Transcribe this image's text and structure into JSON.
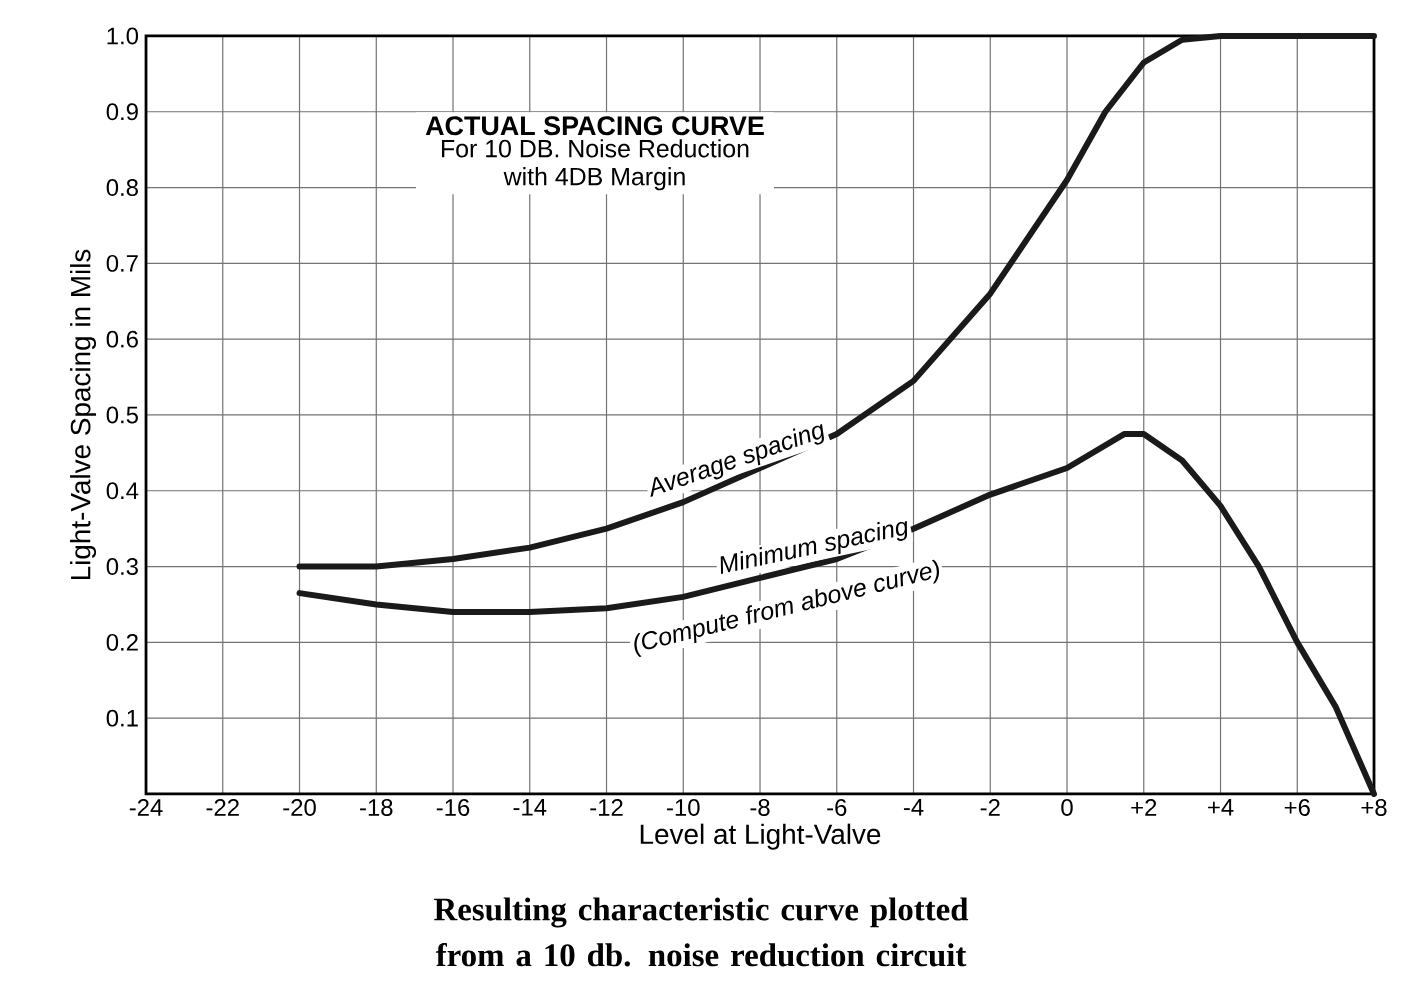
{
  "chart_data": {
    "type": "line",
    "title": "ACTUAL SPACING CURVE",
    "subtitle": "For 10 DB. Noise Reduction with 4DB Margin",
    "xlabel": "Level at Light-Valve",
    "ylabel": "Light-Valve Spacing in Mils",
    "xlim": [
      -24,
      8
    ],
    "ylim": [
      0,
      1.0
    ],
    "xticks": [
      -24,
      -22,
      -20,
      -18,
      -16,
      -14,
      -12,
      -10,
      -8,
      -6,
      -4,
      -2,
      0,
      {
        "value": 2,
        "label": "+2"
      },
      {
        "value": 4,
        "label": "+4"
      },
      {
        "value": 6,
        "label": "+6"
      },
      {
        "value": 8,
        "label": "+8"
      }
    ],
    "yticks": [
      {
        "value": 0,
        "label": null
      },
      0.1,
      0.2,
      0.3,
      0.4,
      0.5,
      0.6,
      0.7,
      0.8,
      0.9,
      {
        "value": 1,
        "label": "1.0"
      }
    ],
    "grid": true,
    "series": [
      {
        "name": "Average spacing",
        "color": "#1a1a1a",
        "x": [
          -20,
          -18,
          -16,
          -14,
          -12,
          -10,
          -8,
          -6,
          -4,
          -2,
          0,
          1,
          2,
          3,
          4,
          6,
          8
        ],
        "values": [
          0.3,
          0.3,
          0.31,
          0.325,
          0.35,
          0.385,
          0.43,
          0.475,
          0.545,
          0.66,
          0.81,
          0.9,
          0.965,
          0.995,
          1.0,
          1.0,
          1.0
        ]
      },
      {
        "name": "Minimum spacing",
        "color": "#1a1a1a",
        "x": [
          -20,
          -18,
          -16,
          -14,
          -12,
          -10,
          -8,
          -6,
          -4,
          -2,
          0,
          1.5,
          2,
          3,
          4,
          5,
          6,
          7,
          8
        ],
        "values": [
          0.265,
          0.25,
          0.24,
          0.24,
          0.245,
          0.26,
          0.285,
          0.31,
          0.35,
          0.395,
          0.43,
          0.475,
          0.475,
          0.44,
          0.38,
          0.3,
          0.2,
          0.115,
          0
        ]
      }
    ],
    "annotations": [
      "(Compute from above curve)",
      "Resulting characteristic curve plotted from a 10 db. noise reduction circuit"
    ]
  }
}
